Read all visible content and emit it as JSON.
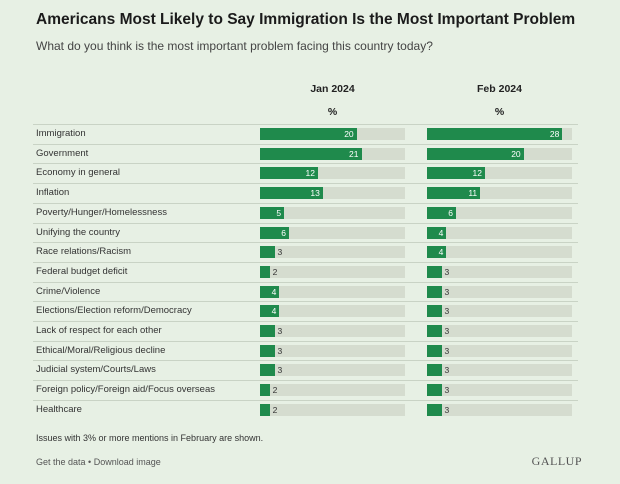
{
  "header": {
    "title": "Americans Most Likely to Say Immigration Is the Most Important Problem",
    "subtitle": "What do you think is the most important problem facing this country today?"
  },
  "columns": [
    {
      "label": "Jan 2024",
      "unit": "%"
    },
    {
      "label": "Feb 2024",
      "unit": "%"
    }
  ],
  "chart_data": {
    "type": "bar",
    "orientation": "horizontal",
    "title": "Americans Most Likely to Say Immigration Is the Most Important Problem",
    "subtitle": "What do you think is the most important problem facing this country today?",
    "categories": [
      "Immigration",
      "Government",
      "Economy in general",
      "Inflation",
      "Poverty/Hunger/Homelessness",
      "Unifying the country",
      "Race relations/Racism",
      "Federal budget deficit",
      "Crime/Violence",
      "Elections/Election reform/Democracy",
      "Lack of respect for each other",
      "Ethical/Moral/Religious decline",
      "Judicial system/Courts/Laws",
      "Foreign policy/Foreign aid/Focus overseas",
      "Healthcare"
    ],
    "series": [
      {
        "name": "Jan 2024",
        "values": [
          20,
          21,
          12,
          13,
          5,
          6,
          3,
          2,
          4,
          4,
          3,
          3,
          3,
          2,
          2
        ]
      },
      {
        "name": "Feb 2024",
        "values": [
          28,
          20,
          12,
          11,
          6,
          4,
          4,
          3,
          3,
          3,
          3,
          3,
          3,
          3,
          3
        ]
      }
    ],
    "unit": "%",
    "xlim": [
      0,
      30
    ],
    "color": "#1f8a4c",
    "track_color": "#d5dccf"
  },
  "footer": {
    "note": "Issues with 3% or more mentions in February are shown.",
    "get_data": "Get the data",
    "separator": " • ",
    "download": "Download image",
    "brand": "GALLUP"
  }
}
